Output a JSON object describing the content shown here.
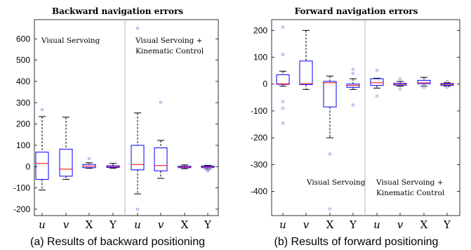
{
  "chart_data": [
    {
      "type": "box",
      "title": "Backward navigation errors",
      "caption": "(a) Results of backward positioning",
      "ylim": [
        -230,
        690
      ],
      "yticks": [
        -200,
        -100,
        0,
        100,
        200,
        300,
        400,
        500,
        600
      ],
      "grid": false,
      "groups": [
        {
          "label": "Visual Servoing",
          "label_lines": [
            "Visual Servoing"
          ]
        },
        {
          "label": "Visual Servoing + Kinematic Control",
          "label_lines": [
            "Visual Servoing +",
            "Kinematic Control"
          ]
        }
      ],
      "categories": [
        "u",
        "v",
        "X",
        "Y",
        "u",
        "v",
        "X",
        "Y"
      ],
      "category_italic": [
        true,
        true,
        false,
        false,
        true,
        true,
        false,
        false
      ],
      "boxes": [
        {
          "category": "u",
          "group": "Visual Servoing",
          "whisker_low": -110,
          "q1": -60,
          "median": 15,
          "q3": 68,
          "whisker_high": 235,
          "outliers": [
            268
          ]
        },
        {
          "category": "v",
          "group": "Visual Servoing",
          "whisker_low": -60,
          "q1": -45,
          "median": -12,
          "q3": 82,
          "whisker_high": 232,
          "outliers": []
        },
        {
          "category": "X",
          "group": "Visual Servoing",
          "whisker_low": -8,
          "q1": -5,
          "median": 2,
          "q3": 10,
          "whisker_high": 18,
          "outliers": [
            38
          ]
        },
        {
          "category": "Y",
          "group": "Visual Servoing",
          "whisker_low": -8,
          "q1": -4,
          "median": 0,
          "q3": 4,
          "whisker_high": 15,
          "outliers": []
        },
        {
          "category": "u",
          "group": "Visual Servoing + Kinematic Control",
          "whisker_low": -128,
          "q1": -15,
          "median": 10,
          "q3": 100,
          "whisker_high": 252,
          "outliers": [
            650,
            -200
          ]
        },
        {
          "category": "v",
          "group": "Visual Servoing + Kinematic Control",
          "whisker_low": -55,
          "q1": -20,
          "median": 5,
          "q3": 88,
          "whisker_high": 123,
          "outliers": [
            302
          ]
        },
        {
          "category": "X",
          "group": "Visual Servoing + Kinematic Control",
          "whisker_low": -10,
          "q1": -5,
          "median": -2,
          "q3": 2,
          "whisker_high": 8,
          "outliers": []
        },
        {
          "category": "Y",
          "group": "Visual Servoing + Kinematic Control",
          "whisker_low": -12,
          "q1": -5,
          "median": -1,
          "q3": 3,
          "whisker_high": 6,
          "outliers": [
            -15,
            -20
          ]
        }
      ]
    },
    {
      "type": "box",
      "title": "Forward navigation errors",
      "caption": "(b) Results of forward positioning",
      "ylim": [
        -490,
        240
      ],
      "yticks": [
        -400,
        -300,
        -200,
        -100,
        0,
        100,
        200
      ],
      "grid": false,
      "groups": [
        {
          "label": "Visual Servoing",
          "label_lines": [
            "Visual Servoing"
          ]
        },
        {
          "label": "Visual Servoing + Kinematic Control",
          "label_lines": [
            "Visual Servoing +",
            "Kinematic Control"
          ]
        }
      ],
      "categories": [
        "u",
        "v",
        "X",
        "Y",
        "u",
        "v",
        "X",
        "Y"
      ],
      "category_italic": [
        true,
        true,
        false,
        false,
        true,
        true,
        false,
        false
      ],
      "boxes": [
        {
          "category": "u",
          "group": "Visual Servoing",
          "whisker_low": -8,
          "q1": -1,
          "median": 1,
          "q3": 35,
          "whisker_high": 48,
          "outliers": [
            212,
            110,
            -65,
            -90,
            -145
          ]
        },
        {
          "category": "v",
          "group": "Visual Servoing",
          "whisker_low": -20,
          "q1": -2,
          "median": 2,
          "q3": 86,
          "whisker_high": 200,
          "outliers": []
        },
        {
          "category": "X",
          "group": "Visual Servoing",
          "whisker_low": -200,
          "q1": -85,
          "median": 5,
          "q3": 10,
          "whisker_high": 30,
          "outliers": [
            -260,
            -465
          ]
        },
        {
          "category": "Y",
          "group": "Visual Servoing",
          "whisker_low": -20,
          "q1": -12,
          "median": -5,
          "q3": 0,
          "whisker_high": 20,
          "outliers": [
            55,
            40,
            -78
          ]
        },
        {
          "category": "u",
          "group": "Visual Servoing + Kinematic Control",
          "whisker_low": -15,
          "q1": -5,
          "median": 5,
          "q3": 20,
          "whisker_high": 22,
          "outliers": [
            52,
            -45
          ]
        },
        {
          "category": "v",
          "group": "Visual Servoing + Kinematic Control",
          "whisker_low": -8,
          "q1": -4,
          "median": -1,
          "q3": 3,
          "whisker_high": 10,
          "outliers": [
            20,
            -18
          ]
        },
        {
          "category": "X",
          "group": "Visual Servoing + Kinematic Control",
          "whisker_low": -8,
          "q1": 1,
          "median": 5,
          "q3": 14,
          "whisker_high": 25,
          "outliers": [
            -12
          ]
        },
        {
          "category": "Y",
          "group": "Visual Servoing + Kinematic Control",
          "whisker_low": -8,
          "q1": -5,
          "median": -1,
          "q3": 2,
          "whisker_high": 5,
          "outliers": [
            10,
            -12
          ]
        }
      ]
    }
  ],
  "style": {
    "box_color": "#0000ff",
    "median_color": "#ff0000",
    "whisker_color": "#000000",
    "outlier_color": "#8a8ae0",
    "separator_color": "#b4b4b4"
  }
}
